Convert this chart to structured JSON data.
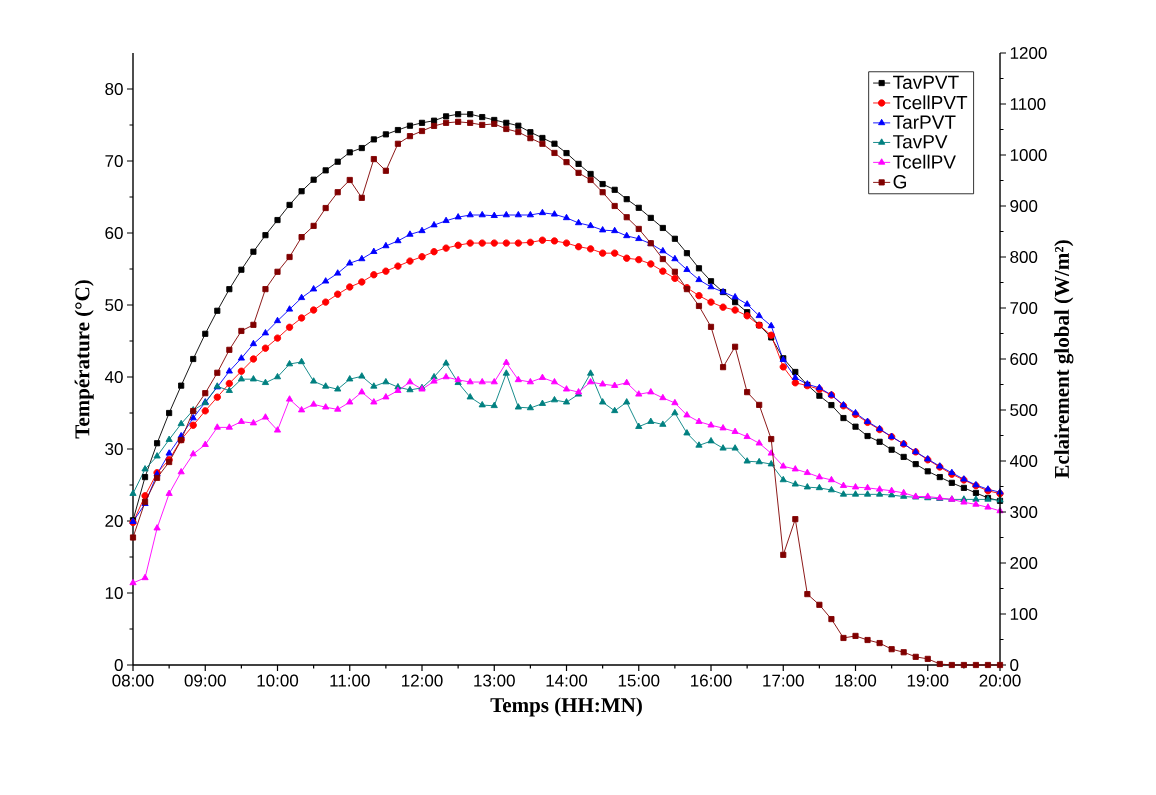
{
  "chart_data": {
    "type": "line",
    "xlabel": "Temps (HH:MN)",
    "ylabel": "Température (°C)",
    "y2label": "Eclairement global (W/m²)",
    "legend": "top right",
    "x": [
      8,
      8.1667,
      8.3333,
      8.5,
      8.6667,
      8.8333,
      9,
      9.1667,
      9.3333,
      9.5,
      9.6667,
      9.8333,
      10,
      10.1667,
      10.3333,
      10.5,
      10.6667,
      10.8333,
      11,
      11.1667,
      11.3333,
      11.5,
      11.6667,
      11.8333,
      12,
      12.1667,
      12.3333,
      12.5,
      12.6667,
      12.8333,
      13,
      13.1667,
      13.3333,
      13.5,
      13.6667,
      13.8333,
      14,
      14.1667,
      14.3333,
      14.5,
      14.6667,
      14.8333,
      15,
      15.1667,
      15.3333,
      15.5,
      15.6667,
      15.8333,
      16,
      16.1667,
      16.3333,
      16.5,
      16.6667,
      16.8333,
      17,
      17.1667,
      17.3333,
      17.5,
      17.6667,
      17.8333,
      18,
      18.1667,
      18.3333,
      18.5,
      18.6667,
      18.8333,
      19,
      19.1667,
      19.3333,
      19.5,
      19.6667,
      19.8333,
      20
    ],
    "xlim": [
      8,
      20
    ],
    "xticks": [
      {
        "value": 8,
        "label": "08:00"
      },
      {
        "value": 9,
        "label": "09:00"
      },
      {
        "value": 10,
        "label": "10:00"
      },
      {
        "value": 11,
        "label": "11:00"
      },
      {
        "value": 12,
        "label": "12:00"
      },
      {
        "value": 13,
        "label": "13:00"
      },
      {
        "value": 14,
        "label": "14:00"
      },
      {
        "value": 15,
        "label": "15:00"
      },
      {
        "value": 16,
        "label": "16:00"
      },
      {
        "value": 17,
        "label": "17:00"
      },
      {
        "value": 18,
        "label": "18:00"
      },
      {
        "value": 19,
        "label": "19:00"
      },
      {
        "value": 20,
        "label": "20:00"
      }
    ],
    "ylim": [
      0,
      85
    ],
    "yticks": [
      0,
      10,
      20,
      30,
      40,
      50,
      60,
      70,
      80
    ],
    "y2lim": [
      0,
      1200
    ],
    "y2ticks": [
      0,
      100,
      200,
      300,
      400,
      500,
      600,
      700,
      800,
      900,
      1000,
      1100,
      1200
    ],
    "series": [
      {
        "name": "TavPVT",
        "color": "#000000",
        "marker": "square",
        "values": [
          20.1,
          26.1,
          30.8,
          35,
          38.8,
          42.5,
          46,
          49.2,
          52.2,
          54.9,
          57.4,
          59.7,
          61.8,
          63.9,
          65.8,
          67.4,
          68.7,
          69.9,
          71.2,
          71.8,
          73,
          73.7,
          74.3,
          74.9,
          75.3,
          75.6,
          76.2,
          76.5,
          76.5,
          76.1,
          75.7,
          75.3,
          74.9,
          74,
          73.2,
          72.4,
          71.1,
          69.6,
          68.2,
          66.8,
          66,
          64.7,
          63.5,
          62.1,
          60.7,
          59.2,
          57.2,
          55.1,
          53.3,
          51.8,
          50.4,
          49,
          47.2,
          45.5,
          42.6,
          40.7,
          38.9,
          37.4,
          36.1,
          34.3,
          33.1,
          31.8,
          31,
          29.9,
          28.9,
          27.9,
          26.9,
          26.1,
          25.3,
          24.6,
          23.9,
          23.2,
          22.8
        ]
      },
      {
        "name": "TcellPVT",
        "color": "#ff0000",
        "marker": "circle",
        "values": [
          19.8,
          23.5,
          26.7,
          28.5,
          31.3,
          33.3,
          35.3,
          37.2,
          39.1,
          40.8,
          42.5,
          44,
          45.4,
          46.9,
          48.2,
          49.3,
          50.4,
          51.5,
          52.5,
          53.2,
          54.2,
          54.7,
          55.4,
          56.1,
          56.7,
          57.4,
          57.9,
          58.3,
          58.6,
          58.6,
          58.6,
          58.6,
          58.6,
          58.7,
          59,
          58.9,
          58.6,
          58.1,
          57.8,
          57.2,
          57.2,
          56.5,
          56.3,
          55.7,
          54.7,
          53.7,
          52.4,
          51.3,
          50.4,
          49.7,
          49.3,
          48.5,
          47.2,
          45.8,
          41.4,
          39.2,
          38.8,
          38.3,
          37.5,
          36,
          34.8,
          33.7,
          32.7,
          31.7,
          30.7,
          29.6,
          28.5,
          27.5,
          26.5,
          25.7,
          24.9,
          24.2,
          23.8
        ]
      },
      {
        "name": "TarPVT",
        "color": "#0000ff",
        "marker": "triangle",
        "values": [
          19.9,
          22.4,
          26.5,
          29.4,
          31.8,
          34.3,
          36.5,
          38.6,
          40.8,
          42.6,
          44.6,
          46.1,
          47.8,
          49.4,
          51,
          52.2,
          53.3,
          54.4,
          55.8,
          56.4,
          57.4,
          58.2,
          58.9,
          59.8,
          60.3,
          61.1,
          61.7,
          62.2,
          62.5,
          62.5,
          62.4,
          62.5,
          62.5,
          62.5,
          62.8,
          62.6,
          62.1,
          61.4,
          61,
          60.4,
          60.3,
          59.6,
          59.2,
          58.5,
          57.5,
          56.4,
          54.9,
          53.5,
          52.5,
          51.8,
          51.1,
          50.1,
          48.5,
          47.1,
          42.4,
          39.9,
          39,
          38.5,
          37.5,
          36.1,
          35,
          33.8,
          32.8,
          31.7,
          30.7,
          29.6,
          28.6,
          27.6,
          26.7,
          25.8,
          25,
          24.4,
          24
        ]
      },
      {
        "name": "TavPV",
        "color": "#008080",
        "marker": "triangle",
        "values": [
          23.8,
          27.2,
          29,
          31.3,
          33.5,
          35.4,
          36.4,
          38.7,
          38.1,
          39.7,
          39.7,
          39.2,
          40,
          41.8,
          42.1,
          39.4,
          38.7,
          38.3,
          39.7,
          40.1,
          38.7,
          39.3,
          38.6,
          38.2,
          38.5,
          40,
          41.9,
          39.2,
          37.2,
          36.1,
          36,
          40.5,
          35.8,
          35.7,
          36.3,
          36.8,
          36.5,
          37.6,
          40.5,
          36.5,
          35.3,
          36.5,
          33.1,
          33.8,
          33.4,
          35,
          32.2,
          30.5,
          31.1,
          30.1,
          30.1,
          28.3,
          28.2,
          27.9,
          25.7,
          25.1,
          24.7,
          24.6,
          24.3,
          23.7,
          23.7,
          23.7,
          23.7,
          23.6,
          23.4,
          23.3,
          23.2,
          23.1,
          23,
          23,
          23,
          23,
          22.9
        ]
      },
      {
        "name": "TcellPV",
        "color": "#ff00ff",
        "marker": "triangle",
        "values": [
          11.4,
          12.1,
          19,
          23.8,
          26.8,
          29.3,
          30.6,
          33,
          33,
          33.8,
          33.6,
          34.4,
          32.6,
          36.9,
          35.4,
          36.2,
          35.8,
          35.5,
          36.5,
          37.9,
          36.5,
          37.2,
          38.1,
          39.3,
          38.3,
          39.4,
          40,
          39.6,
          39.3,
          39.3,
          39.3,
          42,
          39.6,
          39.3,
          39.9,
          39.3,
          38.3,
          37.9,
          39.3,
          39,
          38.8,
          39.2,
          37.6,
          37.9,
          37.1,
          36.4,
          34.7,
          33.8,
          33.3,
          32.9,
          32.4,
          31.7,
          30.8,
          29.4,
          27.6,
          27.2,
          26.7,
          26.1,
          25.7,
          24.9,
          24.7,
          24.6,
          24.4,
          24.2,
          23.9,
          23.4,
          23.4,
          23.2,
          23,
          22.6,
          22.3,
          21.9,
          21.4
        ]
      },
      {
        "name": "G",
        "color": "#800000",
        "marker": "square",
        "axis": "y2",
        "values": [
          250,
          320,
          367,
          398,
          441,
          498,
          533,
          573,
          618,
          655,
          667,
          737,
          771,
          800,
          839,
          861,
          896,
          927,
          951,
          916,
          992,
          969,
          1022,
          1037,
          1047,
          1057,
          1063,
          1065,
          1063,
          1059,
          1061,
          1051,
          1045,
          1033,
          1022,
          1004,
          986,
          965,
          951,
          927,
          900,
          878,
          855,
          827,
          796,
          771,
          737,
          704,
          663,
          584,
          624,
          535,
          510,
          443,
          216,
          286,
          139,
          118,
          90,
          53,
          57,
          49,
          43,
          31,
          25,
          16,
          12,
          2,
          0,
          0,
          0,
          0,
          0
        ]
      }
    ]
  }
}
